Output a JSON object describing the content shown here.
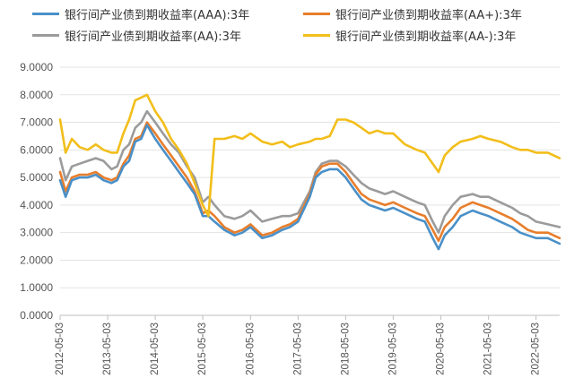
{
  "chart_data": {
    "type": "line",
    "title": "",
    "xlabel": "",
    "ylabel": "",
    "ylim": [
      0,
      9
    ],
    "y_ticks": [
      "0.0000",
      "1.0000",
      "2.0000",
      "3.0000",
      "4.0000",
      "5.0000",
      "6.0000",
      "7.0000",
      "8.0000",
      "9.0000"
    ],
    "x_range": [
      "2012-05-03",
      "2022-10-31"
    ],
    "x_ticks": [
      "2012-05-03",
      "2013-05-03",
      "2014-05-03",
      "2015-05-03",
      "2016-05-03",
      "2017-05-03",
      "2018-05-03",
      "2019-05-03",
      "2020-05-03",
      "2021-05-03",
      "2022-05-03"
    ],
    "grid": "horizontal",
    "legend_position": "top",
    "x": [
      "2012-05-03",
      "2012-06-15",
      "2012-08-01",
      "2012-10-01",
      "2012-12-01",
      "2013-02-01",
      "2013-04-01",
      "2013-06-01",
      "2013-07-15",
      "2013-09-01",
      "2013-10-15",
      "2013-12-01",
      "2014-01-15",
      "2014-03-01",
      "2014-05-03",
      "2014-07-01",
      "2014-09-01",
      "2014-11-01",
      "2015-01-01",
      "2015-03-01",
      "2015-05-03",
      "2015-06-15",
      "2015-08-01",
      "2015-10-15",
      "2016-01-01",
      "2016-03-01",
      "2016-05-03",
      "2016-08-01",
      "2016-10-15",
      "2017-01-01",
      "2017-03-01",
      "2017-05-03",
      "2017-08-01",
      "2017-09-15",
      "2017-11-01",
      "2018-01-01",
      "2018-03-01",
      "2018-05-03",
      "2018-07-01",
      "2018-09-01",
      "2018-11-01",
      "2019-01-01",
      "2019-03-01",
      "2019-05-03",
      "2019-08-01",
      "2019-11-01",
      "2020-01-01",
      "2020-03-01",
      "2020-04-15",
      "2020-06-01",
      "2020-08-01",
      "2020-10-01",
      "2021-01-01",
      "2021-03-01",
      "2021-05-03",
      "2021-08-01",
      "2021-11-01",
      "2022-01-01",
      "2022-03-01",
      "2022-05-03",
      "2022-08-01",
      "2022-10-31"
    ],
    "series": [
      {
        "name": "银行间产业债到期收益率(AAA):3年",
        "color": "#4A90C8",
        "values": [
          4.9,
          4.3,
          4.9,
          5.0,
          5.0,
          5.1,
          4.9,
          4.8,
          4.9,
          5.4,
          5.6,
          6.3,
          6.4,
          6.9,
          6.4,
          6.0,
          5.6,
          5.2,
          4.8,
          4.4,
          3.6,
          3.6,
          3.4,
          3.1,
          2.9,
          3.0,
          3.2,
          2.8,
          2.9,
          3.1,
          3.2,
          3.4,
          4.3,
          5.0,
          5.2,
          5.3,
          5.3,
          5.0,
          4.6,
          4.2,
          4.0,
          3.9,
          3.8,
          3.9,
          3.7,
          3.5,
          3.4,
          2.8,
          2.4,
          2.9,
          3.2,
          3.6,
          3.8,
          3.7,
          3.6,
          3.4,
          3.2,
          3.0,
          2.9,
          2.8,
          2.8,
          2.6
        ]
      },
      {
        "name": "银行间产业债到期收益率(AA+):3年",
        "color": "#E87E2C",
        "values": [
          5.2,
          4.5,
          5.0,
          5.1,
          5.1,
          5.2,
          5.0,
          4.9,
          5.0,
          5.5,
          5.8,
          6.4,
          6.5,
          7.0,
          6.6,
          6.2,
          5.8,
          5.4,
          5.0,
          4.5,
          3.7,
          3.8,
          3.6,
          3.2,
          3.0,
          3.1,
          3.3,
          2.9,
          3.0,
          3.2,
          3.3,
          3.5,
          4.4,
          5.1,
          5.4,
          5.5,
          5.5,
          5.2,
          4.8,
          4.4,
          4.2,
          4.1,
          4.0,
          4.1,
          3.9,
          3.7,
          3.6,
          3.1,
          2.7,
          3.2,
          3.5,
          3.9,
          4.1,
          4.0,
          3.9,
          3.7,
          3.5,
          3.3,
          3.1,
          3.0,
          3.0,
          2.8
        ]
      },
      {
        "name": "银行间产业债到期收益率(AA):3年",
        "color": "#9B9B9B",
        "values": [
          5.7,
          4.9,
          5.4,
          5.5,
          5.6,
          5.7,
          5.6,
          5.3,
          5.4,
          6.0,
          6.2,
          6.8,
          7.0,
          7.4,
          7.0,
          6.6,
          6.2,
          5.9,
          5.4,
          5.0,
          4.1,
          4.3,
          4.0,
          3.6,
          3.5,
          3.6,
          3.8,
          3.4,
          3.5,
          3.6,
          3.6,
          3.7,
          4.5,
          5.2,
          5.5,
          5.6,
          5.6,
          5.4,
          5.1,
          4.8,
          4.6,
          4.5,
          4.4,
          4.5,
          4.3,
          4.1,
          4.0,
          3.4,
          3.0,
          3.6,
          4.0,
          4.3,
          4.4,
          4.3,
          4.3,
          4.1,
          3.9,
          3.7,
          3.6,
          3.4,
          3.3,
          3.2
        ]
      },
      {
        "name": "银行间产业债到期收益率(AA-):3年",
        "color": "#F2BE1A",
        "values": [
          7.1,
          5.9,
          6.4,
          6.1,
          6.0,
          6.2,
          6.0,
          5.9,
          5.9,
          6.6,
          7.1,
          7.8,
          7.9,
          8.0,
          7.4,
          7.0,
          6.4,
          6.0,
          5.5,
          4.8,
          4.0,
          3.6,
          6.4,
          6.4,
          6.5,
          6.4,
          6.6,
          6.3,
          6.2,
          6.3,
          6.1,
          6.2,
          6.3,
          6.4,
          6.4,
          6.5,
          7.1,
          7.1,
          7.0,
          6.8,
          6.6,
          6.7,
          6.6,
          6.6,
          6.2,
          6.0,
          5.9,
          5.5,
          5.2,
          5.8,
          6.1,
          6.3,
          6.4,
          6.5,
          6.4,
          6.3,
          6.1,
          6.0,
          6.0,
          5.9,
          5.9,
          5.7
        ]
      }
    ]
  }
}
